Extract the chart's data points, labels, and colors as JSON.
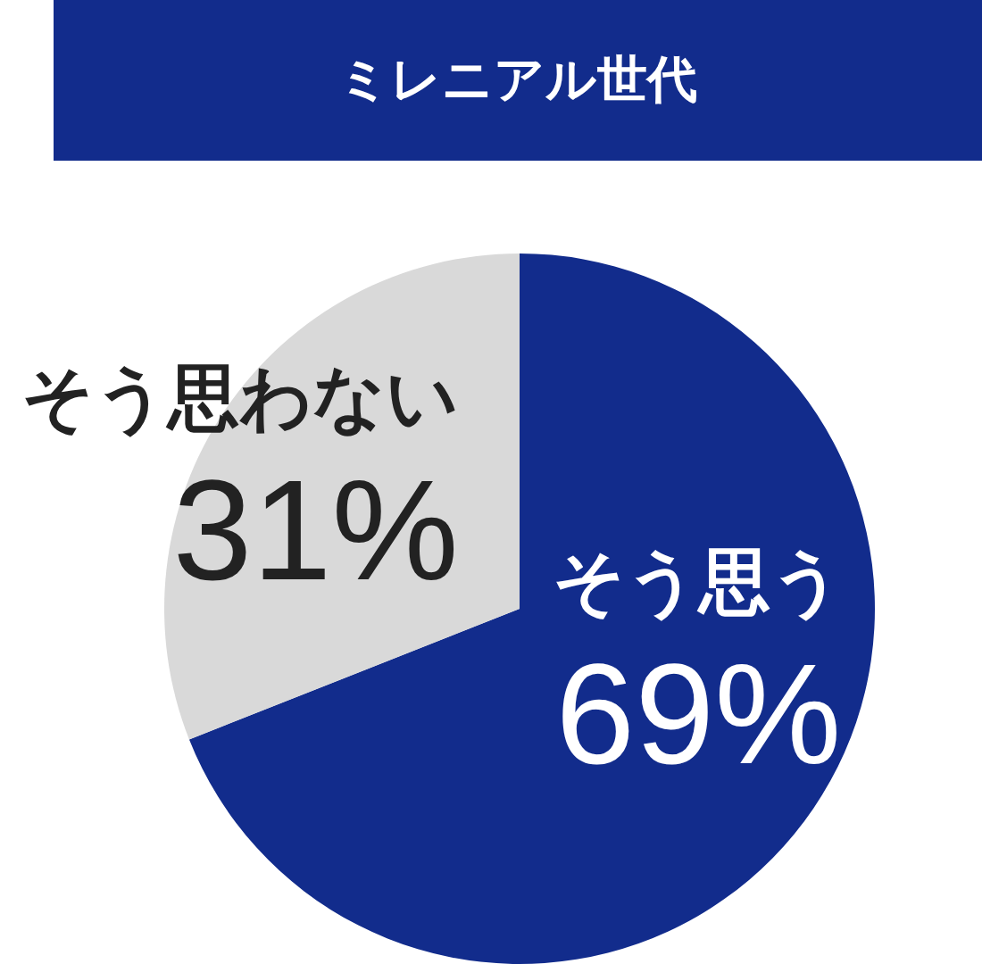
{
  "chart_data": {
    "type": "pie",
    "title": "ミレニアル世代",
    "categories": [
      "そう思う",
      "そう思わない"
    ],
    "values": [
      69,
      31
    ],
    "colors": [
      "#122c8c",
      "#d9d9d9"
    ],
    "value_labels": [
      "69%",
      "31%"
    ]
  }
}
